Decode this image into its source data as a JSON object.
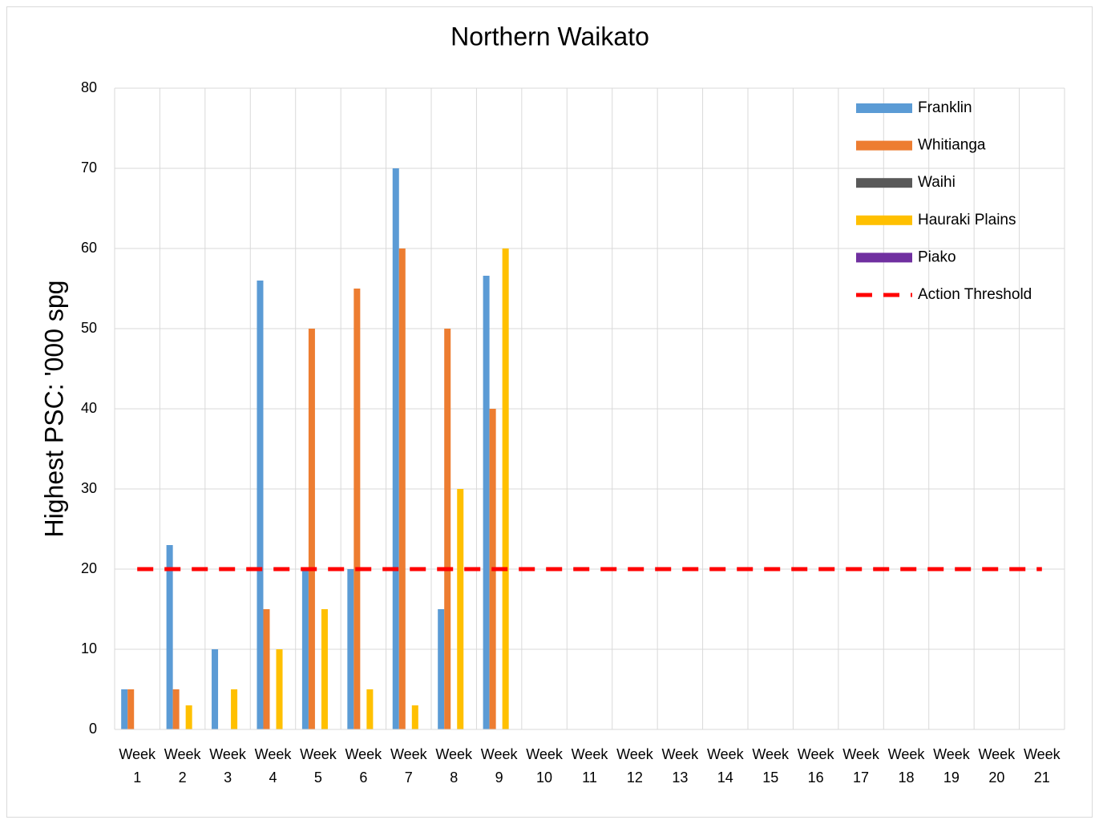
{
  "chart_data": {
    "type": "bar",
    "title": "Northern Waikato",
    "y_label": "Highest PSC: '000 spg",
    "categories": [
      "Week 1",
      "Week 2",
      "Week 3",
      "Week 4",
      "Week 5",
      "Week 6",
      "Week 7",
      "Week 8",
      "Week 9",
      "Week 10",
      "Week 11",
      "Week 12",
      "Week 13",
      "Week 14",
      "Week 15",
      "Week 16",
      "Week 17",
      "Week 18",
      "Week 19",
      "Week 20",
      "Week 21"
    ],
    "series": [
      {
        "name": "Franklin",
        "color": "#5b9bd5",
        "values": [
          5,
          23,
          10,
          56,
          20,
          20,
          70,
          15,
          56.6,
          null,
          null,
          null,
          null,
          null,
          null,
          null,
          null,
          null,
          null,
          null,
          null
        ]
      },
      {
        "name": "Whitianga",
        "color": "#ed7d31",
        "values": [
          5,
          5,
          null,
          15,
          50,
          55,
          60,
          50,
          40,
          null,
          null,
          null,
          null,
          null,
          null,
          null,
          null,
          null,
          null,
          null,
          null
        ]
      },
      {
        "name": "Waihi",
        "color": "#595959",
        "values": [
          null,
          null,
          null,
          null,
          null,
          null,
          null,
          null,
          null,
          null,
          null,
          null,
          null,
          null,
          null,
          null,
          null,
          null,
          null,
          null,
          null
        ]
      },
      {
        "name": "Hauraki Plains",
        "color": "#ffc000",
        "values": [
          null,
          3,
          5,
          10,
          15,
          5,
          3,
          30,
          60,
          null,
          null,
          null,
          null,
          null,
          null,
          null,
          null,
          null,
          null,
          null,
          null
        ]
      },
      {
        "name": "Piako",
        "color": "#7030a0",
        "values": [
          null,
          null,
          null,
          null,
          null,
          null,
          null,
          null,
          null,
          null,
          null,
          null,
          null,
          null,
          null,
          null,
          null,
          null,
          null,
          null,
          null
        ]
      },
      {
        "name": "Action Threshold",
        "color": "#ff0000",
        "type": "line",
        "dashed": true,
        "values": [
          20,
          20,
          20,
          20,
          20,
          20,
          20,
          20,
          20,
          20,
          20,
          20,
          20,
          20,
          20,
          20,
          20,
          20,
          20,
          20,
          20
        ]
      }
    ],
    "ylim": [
      0,
      80
    ],
    "yticks": [
      0,
      10,
      20,
      30,
      40,
      50,
      60,
      70,
      80
    ],
    "grid": true,
    "legend": "top-right"
  }
}
